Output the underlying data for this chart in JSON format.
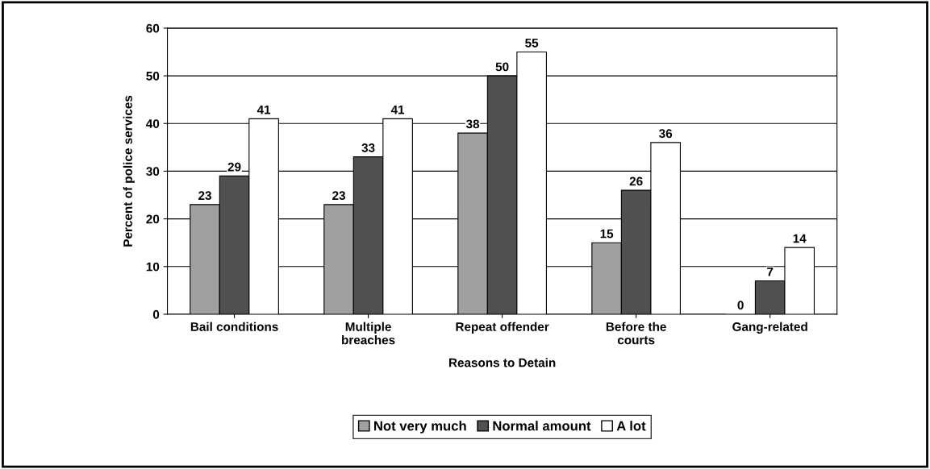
{
  "chart_data": {
    "type": "bar",
    "xlabel": "Reasons to Detain",
    "ylabel": "Percent of police services",
    "categories": [
      "Bail conditions",
      "Multiple\nbreaches",
      "Repeat offender",
      "Before the\ncourts",
      "Gang-related"
    ],
    "series": [
      {
        "name": "Not very much",
        "color": "#a0a0a0",
        "values": [
          23,
          23,
          38,
          15,
          0
        ]
      },
      {
        "name": "Normal amount",
        "color": "#505050",
        "values": [
          29,
          33,
          50,
          26,
          7
        ]
      },
      {
        "name": "A lot",
        "color": "#ffffff",
        "values": [
          41,
          41,
          55,
          36,
          14
        ]
      }
    ],
    "ylim": [
      0,
      60
    ],
    "yticks": [
      0,
      10,
      20,
      30,
      40,
      50,
      60
    ],
    "grid": "y",
    "legend": "bottom",
    "data_labels": true
  }
}
